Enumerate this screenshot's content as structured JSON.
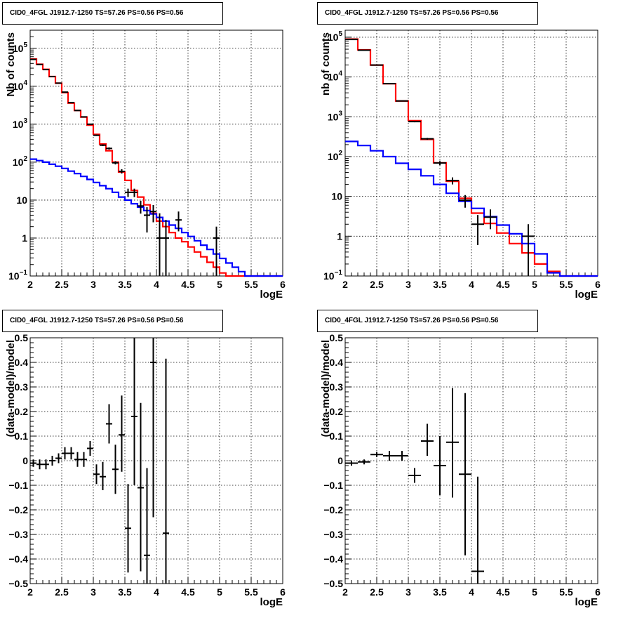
{
  "chart_data": [
    {
      "type": "line",
      "title": "CID0_4FGL J1912.7-1250 TS=57.26 PS=0.56 PS=0.56",
      "xlabel": "logE",
      "ylabel": "Nb of counts",
      "xlim": [
        2,
        6
      ],
      "ylim": [
        0.1,
        300000
      ],
      "yscale": "log",
      "grid": true,
      "xticks": [
        "2",
        "2.5",
        "3",
        "3.5",
        "4",
        "4.5",
        "5",
        "5.5",
        "6"
      ],
      "yticks": [
        {
          "v": 0.1,
          "m": "10",
          "e": "−1"
        },
        {
          "v": 1,
          "t": "1"
        },
        {
          "v": 10,
          "t": "10"
        },
        {
          "v": 100,
          "m": "10",
          "e": "2"
        },
        {
          "v": 1000,
          "m": "10",
          "e": "3"
        },
        {
          "v": 10000,
          "m": "10",
          "e": "4"
        },
        {
          "v": 100000,
          "m": "10",
          "e": "5"
        }
      ],
      "bin_edges": [
        2,
        2.1,
        2.2,
        2.3,
        2.4,
        2.5,
        2.6,
        2.7,
        2.8,
        2.9,
        3.0,
        3.1,
        3.2,
        3.3,
        3.4,
        3.5,
        3.6,
        3.7,
        3.8,
        3.9,
        4.0,
        4.1,
        4.2,
        4.3,
        4.4,
        4.5,
        4.6,
        4.7,
        4.8,
        4.9,
        5.0,
        5.1,
        5.2,
        5.3,
        5.4,
        5.5,
        5.6,
        5.7,
        5.8,
        5.9,
        6.0
      ],
      "series": [
        {
          "color": "#ff0000",
          "values": [
            52000,
            38000,
            28000,
            18000,
            12000,
            6800,
            3600,
            2300,
            1550,
            950,
            540,
            300,
            200,
            100,
            55,
            33,
            18,
            12,
            7.5,
            4.5,
            2.8,
            2.0,
            1.4,
            1.0,
            0.8,
            0.58,
            0.43,
            0.32,
            0.23,
            0.17,
            0.12,
            0.1,
            0.1,
            0.1,
            0.1,
            0.1,
            0.1,
            0.1,
            0.1,
            0.1
          ]
        },
        {
          "color": "#0000ff",
          "values": [
            120,
            110,
            100,
            88,
            78,
            68,
            58,
            50,
            42,
            35,
            29,
            24,
            20,
            16,
            12,
            10,
            8,
            6.5,
            5.3,
            4.3,
            3.5,
            2.8,
            2.2,
            1.8,
            1.4,
            1.1,
            0.85,
            0.65,
            0.5,
            0.38,
            0.29,
            0.22,
            0.17,
            0.13,
            0.1,
            0.1,
            0.1,
            0.1,
            0.1,
            0.1
          ]
        }
      ],
      "points": [
        {
          "x": 2.05,
          "y": 51000,
          "ylo": 50500,
          "yhi": 51500
        },
        {
          "x": 2.15,
          "y": 37500,
          "ylo": 37100,
          "yhi": 37900
        },
        {
          "x": 2.25,
          "y": 27500,
          "ylo": 27100,
          "yhi": 27900
        },
        {
          "x": 2.35,
          "y": 18000,
          "ylo": 17700,
          "yhi": 18300
        },
        {
          "x": 2.45,
          "y": 12100,
          "ylo": 11900,
          "yhi": 12300
        },
        {
          "x": 2.55,
          "y": 7000,
          "ylo": 6850,
          "yhi": 7150
        },
        {
          "x": 2.65,
          "y": 3700,
          "ylo": 3600,
          "yhi": 3800
        },
        {
          "x": 2.75,
          "y": 2300,
          "ylo": 2250,
          "yhi": 2350
        },
        {
          "x": 2.85,
          "y": 1560,
          "ylo": 1520,
          "yhi": 1600
        },
        {
          "x": 2.95,
          "y": 1000,
          "ylo": 970,
          "yhi": 1030
        },
        {
          "x": 3.05,
          "y": 510,
          "ylo": 490,
          "yhi": 530
        },
        {
          "x": 3.15,
          "y": 280,
          "ylo": 265,
          "yhi": 295
        },
        {
          "x": 3.25,
          "y": 230,
          "ylo": 215,
          "yhi": 245
        },
        {
          "x": 3.35,
          "y": 96,
          "ylo": 87,
          "yhi": 106
        },
        {
          "x": 3.45,
          "y": 57,
          "ylo": 50,
          "yhi": 65
        },
        {
          "x": 3.55,
          "y": 16,
          "ylo": 12,
          "yhi": 20
        },
        {
          "x": 3.65,
          "y": 16,
          "ylo": 12,
          "yhi": 20
        },
        {
          "x": 3.75,
          "y": 7,
          "ylo": 4.4,
          "yhi": 9.6
        },
        {
          "x": 3.85,
          "y": 4,
          "ylo": 1.4,
          "yhi": 6.5
        },
        {
          "x": 3.95,
          "y": 5,
          "ylo": 2.6,
          "yhi": 7.4
        },
        {
          "x": 4.05,
          "y": 1,
          "ylo": 0.1,
          "yhi": 4.5
        },
        {
          "x": 4.15,
          "y": 1,
          "ylo": 0.1,
          "yhi": 3
        },
        {
          "x": 4.35,
          "y": 3,
          "ylo": 1.5,
          "yhi": 5
        },
        {
          "x": 4.95,
          "y": 1,
          "ylo": 0.1,
          "yhi": 2
        }
      ]
    },
    {
      "type": "line",
      "title": "CID0_4FGL J1912.7-1250 TS=57.26 PS=0.56 PS=0.56",
      "xlabel": "logE",
      "ylabel": "nb of counts",
      "xlim": [
        2,
        6
      ],
      "ylim": [
        0.1,
        150000
      ],
      "yscale": "log",
      "grid": true,
      "xticks": [
        "2",
        "2.5",
        "3",
        "3.5",
        "4",
        "4.5",
        "5",
        "5.5",
        "6"
      ],
      "yticks": [
        {
          "v": 0.1,
          "m": "10",
          "e": "−1"
        },
        {
          "v": 1,
          "t": "1"
        },
        {
          "v": 10,
          "t": "10"
        },
        {
          "v": 100,
          "m": "10",
          "e": "2"
        },
        {
          "v": 1000,
          "m": "10",
          "e": "3"
        },
        {
          "v": 10000,
          "m": "10",
          "e": "4"
        },
        {
          "v": 100000,
          "m": "10",
          "e": "5"
        }
      ],
      "bin_edges": [
        2,
        2.2,
        2.4,
        2.6,
        2.8,
        3.0,
        3.2,
        3.4,
        3.6,
        3.8,
        4.0,
        4.2,
        4.4,
        4.6,
        4.8,
        5.0,
        5.2,
        5.4,
        5.6,
        5.8,
        6.0
      ],
      "series": [
        {
          "color": "#ff0000",
          "values": [
            90000,
            48000,
            20000,
            6800,
            2500,
            800,
            270,
            70,
            24,
            9,
            3.8,
            2.1,
            1.2,
            0.65,
            0.38,
            0.2,
            0.13,
            0.1,
            0.1,
            0.1
          ]
        },
        {
          "color": "#0000ff",
          "values": [
            240,
            190,
            140,
            100,
            68,
            48,
            33,
            20,
            12,
            7.5,
            5.0,
            3.1,
            1.9,
            1.15,
            0.65,
            0.36,
            0.12,
            0.1,
            0.1,
            0.1
          ]
        }
      ],
      "points": [
        {
          "x": 2.1,
          "y": 88000,
          "ylo": 87000,
          "yhi": 89000
        },
        {
          "x": 2.3,
          "y": 47000,
          "ylo": 46500,
          "yhi": 47500
        },
        {
          "x": 2.5,
          "y": 20000,
          "ylo": 19700,
          "yhi": 20300
        },
        {
          "x": 2.7,
          "y": 6800,
          "ylo": 6650,
          "yhi": 6950
        },
        {
          "x": 2.9,
          "y": 2500,
          "ylo": 2450,
          "yhi": 2550
        },
        {
          "x": 3.1,
          "y": 760,
          "ylo": 730,
          "yhi": 790
        },
        {
          "x": 3.3,
          "y": 280,
          "ylo": 265,
          "yhi": 295
        },
        {
          "x": 3.5,
          "y": 69,
          "ylo": 61,
          "yhi": 77
        },
        {
          "x": 3.7,
          "y": 25,
          "ylo": 20,
          "yhi": 30
        },
        {
          "x": 3.9,
          "y": 8,
          "ylo": 5.2,
          "yhi": 10.8
        },
        {
          "x": 4.1,
          "y": 2,
          "ylo": 0.6,
          "yhi": 3.4
        },
        {
          "x": 4.3,
          "y": 3,
          "ylo": 1.5,
          "yhi": 4.7
        },
        {
          "x": 4.9,
          "y": 1,
          "ylo": 0.1,
          "yhi": 2
        }
      ]
    },
    {
      "type": "scatter",
      "title": "CID0_4FGL J1912.7-1250 TS=57.26 PS=0.56 PS=0.56",
      "xlabel": "logE",
      "ylabel": "(data-model)/model",
      "xlim": [
        2,
        6
      ],
      "ylim": [
        -0.5,
        0.5
      ],
      "grid": true,
      "xticks": [
        "2",
        "2.5",
        "3",
        "3.5",
        "4",
        "4.5",
        "5",
        "5.5",
        "6"
      ],
      "yticks": [
        "−0.5",
        "−0.4",
        "−0.3",
        "−0.2",
        "−0.1",
        "0",
        "0.1",
        "0.2",
        "0.3",
        "0.4",
        "0.5"
      ],
      "points": [
        {
          "x": 2.05,
          "y": -0.01,
          "ylo": -0.025,
          "yhi": 0.005
        },
        {
          "x": 2.15,
          "y": -0.015,
          "ylo": -0.035,
          "yhi": 0.005
        },
        {
          "x": 2.25,
          "y": -0.015,
          "ylo": -0.035,
          "yhi": 0.005
        },
        {
          "x": 2.35,
          "y": 0.0,
          "ylo": -0.02,
          "yhi": 0.02
        },
        {
          "x": 2.45,
          "y": 0.01,
          "ylo": -0.01,
          "yhi": 0.03
        },
        {
          "x": 2.55,
          "y": 0.03,
          "ylo": 0.005,
          "yhi": 0.055
        },
        {
          "x": 2.65,
          "y": 0.03,
          "ylo": 0.005,
          "yhi": 0.055
        },
        {
          "x": 2.75,
          "y": 0.005,
          "ylo": -0.025,
          "yhi": 0.035
        },
        {
          "x": 2.85,
          "y": 0.005,
          "ylo": -0.025,
          "yhi": 0.035
        },
        {
          "x": 2.95,
          "y": 0.05,
          "ylo": 0.02,
          "yhi": 0.08
        },
        {
          "x": 3.05,
          "y": -0.055,
          "ylo": -0.095,
          "yhi": -0.015
        },
        {
          "x": 3.15,
          "y": -0.065,
          "ylo": -0.12,
          "yhi": -0.005
        },
        {
          "x": 3.25,
          "y": 0.15,
          "ylo": 0.07,
          "yhi": 0.23
        },
        {
          "x": 3.35,
          "y": -0.035,
          "ylo": -0.135,
          "yhi": 0.065
        },
        {
          "x": 3.45,
          "y": 0.105,
          "ylo": -0.045,
          "yhi": 0.265
        },
        {
          "x": 3.55,
          "y": -0.275,
          "ylo": -0.455,
          "yhi": -0.095
        },
        {
          "x": 3.65,
          "y": 0.18,
          "ylo": -0.1,
          "yhi": 0.5
        },
        {
          "x": 3.75,
          "y": -0.11,
          "ylo": -0.45,
          "yhi": 0.235
        },
        {
          "x": 3.85,
          "y": -0.385,
          "ylo": -0.5,
          "yhi": -0.03
        },
        {
          "x": 3.95,
          "y": 0.4,
          "ylo": -0.23,
          "yhi": 0.5
        },
        {
          "x": 4.15,
          "y": -0.295,
          "ylo": -0.5,
          "yhi": 0.415
        }
      ]
    },
    {
      "type": "scatter",
      "title": "CID0_4FGL J1912.7-1250 TS=57.26 PS=0.56 PS=0.56",
      "xlabel": "logE",
      "ylabel": "(data-model)/model",
      "xlim": [
        2,
        6
      ],
      "ylim": [
        -0.5,
        0.5
      ],
      "grid": true,
      "xticks": [
        "2",
        "2.5",
        "3",
        "3.5",
        "4",
        "4.5",
        "5",
        "5.5",
        "6"
      ],
      "yticks": [
        "−0.5",
        "−0.4",
        "−0.3",
        "−0.2",
        "−0.1",
        "0",
        "0.1",
        "0.2",
        "0.3",
        "0.4",
        "0.5"
      ],
      "points": [
        {
          "x": 2.1,
          "y": -0.01,
          "ylo": -0.02,
          "yhi": 0.0
        },
        {
          "x": 2.3,
          "y": -0.005,
          "ylo": -0.015,
          "yhi": 0.005
        },
        {
          "x": 2.5,
          "y": 0.025,
          "ylo": 0.015,
          "yhi": 0.035
        },
        {
          "x": 2.7,
          "y": 0.02,
          "ylo": 0.0,
          "yhi": 0.04
        },
        {
          "x": 2.9,
          "y": 0.02,
          "ylo": 0.0,
          "yhi": 0.04
        },
        {
          "x": 3.1,
          "y": -0.06,
          "ylo": -0.09,
          "yhi": -0.03
        },
        {
          "x": 3.3,
          "y": 0.08,
          "ylo": 0.02,
          "yhi": 0.15
        },
        {
          "x": 3.5,
          "y": -0.02,
          "ylo": -0.14,
          "yhi": 0.1
        },
        {
          "x": 3.7,
          "y": 0.075,
          "ylo": -0.15,
          "yhi": 0.295
        },
        {
          "x": 3.9,
          "y": -0.055,
          "ylo": -0.385,
          "yhi": 0.275
        },
        {
          "x": 4.1,
          "y": -0.45,
          "ylo": -0.5,
          "yhi": -0.065
        }
      ]
    }
  ]
}
